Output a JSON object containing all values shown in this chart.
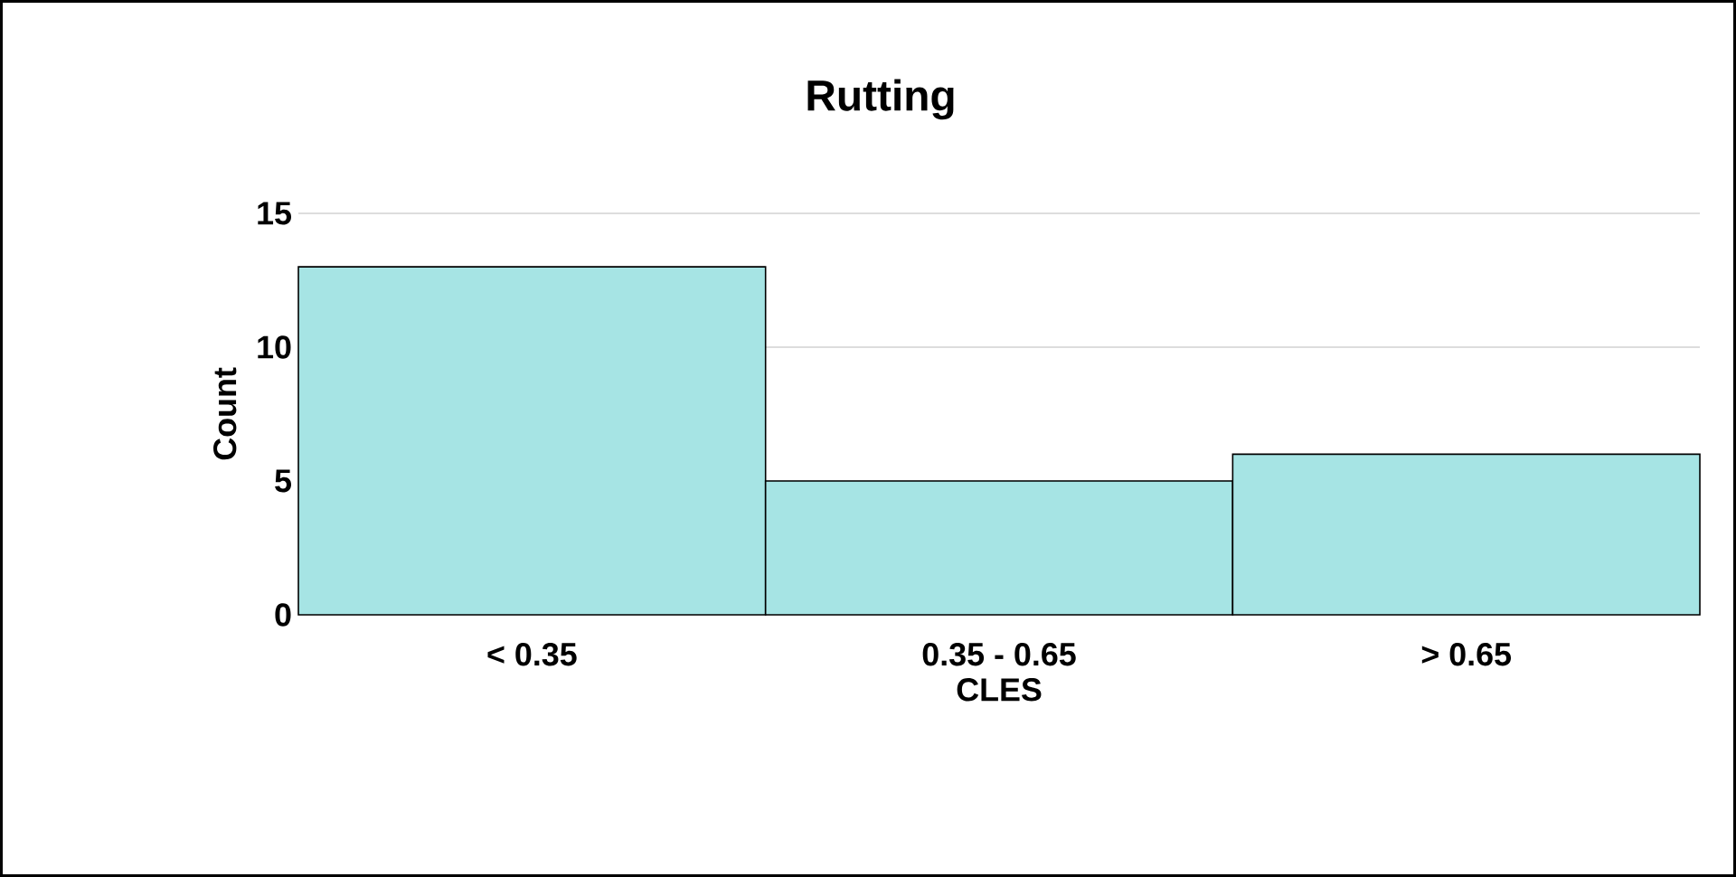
{
  "chart_data": {
    "type": "bar",
    "title": "Rutting",
    "xlabel": "CLES",
    "ylabel": "Count",
    "categories": [
      "< 0.35",
      "0.35 - 0.65",
      "> 0.65"
    ],
    "values": [
      13,
      5,
      6
    ],
    "color": "#a6e4e4",
    "ylim": [
      0,
      15
    ],
    "yticks": [
      0,
      5,
      10,
      15
    ],
    "grid": "y"
  }
}
